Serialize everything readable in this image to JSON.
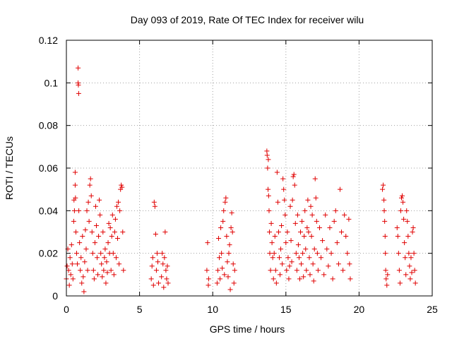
{
  "chart_data": {
    "type": "scatter",
    "title": "Day 093 of 2019, Rate Of TEC Index for receiver wilu",
    "xlabel": "GPS time / hours",
    "ylabel": "ROTI / TECUs",
    "xlim": [
      0,
      25
    ],
    "ylim": [
      0,
      0.12
    ],
    "xticks": [
      0,
      5,
      10,
      15,
      20,
      25
    ],
    "xtick_labels": [
      "0",
      "5",
      "10",
      "15",
      "20",
      "25"
    ],
    "yticks": [
      0,
      0.02,
      0.04,
      0.06,
      0.08,
      0.1,
      0.12
    ],
    "ytick_labels": [
      "0",
      "0.02",
      "0.04",
      "0.06",
      "0.08",
      "0.1",
      "0.12"
    ],
    "grid": true,
    "marker": "+",
    "color": "#e00000",
    "series": [
      {
        "name": "ROTI",
        "points": [
          [
            0.0,
            0.008
          ],
          [
            0.05,
            0.014
          ],
          [
            0.1,
            0.022
          ],
          [
            0.15,
            0.012
          ],
          [
            0.2,
            0.005
          ],
          [
            0.25,
            0.018
          ],
          [
            0.3,
            0.01
          ],
          [
            0.35,
            0.024
          ],
          [
            0.4,
            0.015
          ],
          [
            0.45,
            0.008
          ],
          [
            0.5,
            0.035
          ],
          [
            0.52,
            0.045
          ],
          [
            0.55,
            0.04
          ],
          [
            0.6,
            0.052
          ],
          [
            0.6,
            0.058
          ],
          [
            0.62,
            0.046
          ],
          [
            0.65,
            0.03
          ],
          [
            0.7,
            0.02
          ],
          [
            0.75,
            0.015
          ],
          [
            0.8,
            0.1
          ],
          [
            0.8,
            0.107
          ],
          [
            0.82,
            0.099
          ],
          [
            0.84,
            0.095
          ],
          [
            0.85,
            0.04
          ],
          [
            0.9,
            0.025
          ],
          [
            0.95,
            0.012
          ],
          [
            1.0,
            0.018
          ],
          [
            1.05,
            0.006
          ],
          [
            1.1,
            0.028
          ],
          [
            1.15,
            0.009
          ],
          [
            1.2,
            0.002
          ],
          [
            1.25,
            0.016
          ],
          [
            1.3,
            0.031
          ],
          [
            1.35,
            0.022
          ],
          [
            1.4,
            0.04
          ],
          [
            1.45,
            0.012
          ],
          [
            1.5,
            0.044
          ],
          [
            1.55,
            0.035
          ],
          [
            1.6,
            0.052
          ],
          [
            1.65,
            0.055
          ],
          [
            1.7,
            0.047
          ],
          [
            1.75,
            0.03
          ],
          [
            1.8,
            0.02
          ],
          [
            1.85,
            0.012
          ],
          [
            1.9,
            0.008
          ],
          [
            1.95,
            0.025
          ],
          [
            2.0,
            0.042
          ],
          [
            2.05,
            0.033
          ],
          [
            2.1,
            0.018
          ],
          [
            2.15,
            0.01
          ],
          [
            2.2,
            0.028
          ],
          [
            2.25,
            0.045
          ],
          [
            2.3,
            0.038
          ],
          [
            2.35,
            0.02
          ],
          [
            2.4,
            0.015
          ],
          [
            2.45,
            0.009
          ],
          [
            2.5,
            0.03
          ],
          [
            2.55,
            0.012
          ],
          [
            2.6,
            0.018
          ],
          [
            2.65,
            0.022
          ],
          [
            2.7,
            0.006
          ],
          [
            2.75,
            0.016
          ],
          [
            2.8,
            0.011
          ],
          [
            2.85,
            0.025
          ],
          [
            2.9,
            0.034
          ],
          [
            2.95,
            0.02
          ],
          [
            3.0,
            0.032
          ],
          [
            3.05,
            0.012
          ],
          [
            3.1,
            0.028
          ],
          [
            3.15,
            0.038
          ],
          [
            3.2,
            0.02
          ],
          [
            3.25,
            0.01
          ],
          [
            3.3,
            0.03
          ],
          [
            3.35,
            0.036
          ],
          [
            3.4,
            0.018
          ],
          [
            3.45,
            0.042
          ],
          [
            3.5,
            0.027
          ],
          [
            3.55,
            0.044
          ],
          [
            3.6,
            0.015
          ],
          [
            3.65,
            0.04
          ],
          [
            3.7,
            0.05
          ],
          [
            3.75,
            0.052
          ],
          [
            3.8,
            0.051
          ],
          [
            3.85,
            0.03
          ],
          [
            3.9,
            0.012
          ],
          [
            5.8,
            0.008
          ],
          [
            5.85,
            0.014
          ],
          [
            5.9,
            0.018
          ],
          [
            5.95,
            0.005
          ],
          [
            6.0,
            0.044
          ],
          [
            6.05,
            0.042
          ],
          [
            6.1,
            0.029
          ],
          [
            6.15,
            0.012
          ],
          [
            6.2,
            0.02
          ],
          [
            6.25,
            0.016
          ],
          [
            6.3,
            0.006
          ],
          [
            6.5,
            0.009
          ],
          [
            6.55,
            0.02
          ],
          [
            6.6,
            0.015
          ],
          [
            6.65,
            0.004
          ],
          [
            6.7,
            0.018
          ],
          [
            6.75,
            0.03
          ],
          [
            6.8,
            0.012
          ],
          [
            6.85,
            0.008
          ],
          [
            6.9,
            0.014
          ],
          [
            6.95,
            0.006
          ],
          [
            9.6,
            0.012
          ],
          [
            9.65,
            0.025
          ],
          [
            9.7,
            0.005
          ],
          [
            9.72,
            0.008
          ],
          [
            10.3,
            0.006
          ],
          [
            10.35,
            0.012
          ],
          [
            10.4,
            0.027
          ],
          [
            10.45,
            0.018
          ],
          [
            10.5,
            0.008
          ],
          [
            10.55,
            0.032
          ],
          [
            10.6,
            0.02
          ],
          [
            10.65,
            0.013
          ],
          [
            10.7,
            0.035
          ],
          [
            10.75,
            0.04
          ],
          [
            10.8,
            0.01
          ],
          [
            10.85,
            0.044
          ],
          [
            10.9,
            0.046
          ],
          [
            10.95,
            0.028
          ],
          [
            11.0,
            0.016
          ],
          [
            11.05,
            0.009
          ],
          [
            11.1,
            0.02
          ],
          [
            11.15,
            0.024
          ],
          [
            11.2,
            0.003
          ],
          [
            11.25,
            0.032
          ],
          [
            11.3,
            0.039
          ],
          [
            11.35,
            0.03
          ],
          [
            11.4,
            0.015
          ],
          [
            11.45,
            0.006
          ],
          [
            11.5,
            0.012
          ],
          [
            13.7,
            0.068
          ],
          [
            13.72,
            0.066
          ],
          [
            13.75,
            0.06
          ],
          [
            13.78,
            0.05
          ],
          [
            13.8,
            0.064
          ],
          [
            13.82,
            0.047
          ],
          [
            13.85,
            0.04
          ],
          [
            13.88,
            0.03
          ],
          [
            13.9,
            0.02
          ],
          [
            13.95,
            0.012
          ],
          [
            14.0,
            0.034
          ],
          [
            14.05,
            0.025
          ],
          [
            14.1,
            0.018
          ],
          [
            14.15,
            0.008
          ],
          [
            14.2,
            0.02
          ],
          [
            14.25,
            0.028
          ],
          [
            14.3,
            0.012
          ],
          [
            14.35,
            0.006
          ],
          [
            14.4,
            0.058
          ],
          [
            14.45,
            0.044
          ],
          [
            14.5,
            0.03
          ],
          [
            14.55,
            0.018
          ],
          [
            14.6,
            0.01
          ],
          [
            14.65,
            0.022
          ],
          [
            14.7,
            0.033
          ],
          [
            14.75,
            0.015
          ],
          [
            14.8,
            0.055
          ],
          [
            14.85,
            0.05
          ],
          [
            14.9,
            0.045
          ],
          [
            14.95,
            0.038
          ],
          [
            15.0,
            0.025
          ],
          [
            15.05,
            0.012
          ],
          [
            15.1,
            0.03
          ],
          [
            15.15,
            0.018
          ],
          [
            15.2,
            0.008
          ],
          [
            15.25,
            0.014
          ],
          [
            15.3,
            0.042
          ],
          [
            15.35,
            0.026
          ],
          [
            15.4,
            0.016
          ],
          [
            15.45,
            0.045
          ],
          [
            15.5,
            0.056
          ],
          [
            15.55,
            0.057
          ],
          [
            15.6,
            0.052
          ],
          [
            15.65,
            0.034
          ],
          [
            15.7,
            0.02
          ],
          [
            15.75,
            0.012
          ],
          [
            15.8,
            0.038
          ],
          [
            15.85,
            0.024
          ],
          [
            15.9,
            0.018
          ],
          [
            15.95,
            0.008
          ],
          [
            16.0,
            0.03
          ],
          [
            16.05,
            0.015
          ],
          [
            16.1,
            0.035
          ],
          [
            16.15,
            0.02
          ],
          [
            16.2,
            0.009
          ],
          [
            16.25,
            0.028
          ],
          [
            16.3,
            0.04
          ],
          [
            16.35,
            0.022
          ],
          [
            16.4,
            0.012
          ],
          [
            16.45,
            0.032
          ],
          [
            16.5,
            0.045
          ],
          [
            16.55,
            0.03
          ],
          [
            16.6,
            0.018
          ],
          [
            16.65,
            0.01
          ],
          [
            16.7,
            0.042
          ],
          [
            16.75,
            0.028
          ],
          [
            16.8,
            0.038
          ],
          [
            16.85,
            0.015
          ],
          [
            16.9,
            0.007
          ],
          [
            16.95,
            0.022
          ],
          [
            17.0,
            0.055
          ],
          [
            17.05,
            0.046
          ],
          [
            17.1,
            0.035
          ],
          [
            17.15,
            0.02
          ],
          [
            17.2,
            0.012
          ],
          [
            17.3,
            0.032
          ],
          [
            17.4,
            0.018
          ],
          [
            17.5,
            0.026
          ],
          [
            17.6,
            0.01
          ],
          [
            17.7,
            0.038
          ],
          [
            17.8,
            0.022
          ],
          [
            17.9,
            0.014
          ],
          [
            18.0,
            0.032
          ],
          [
            18.1,
            0.02
          ],
          [
            18.2,
            0.008
          ],
          [
            18.3,
            0.035
          ],
          [
            18.4,
            0.04
          ],
          [
            18.5,
            0.025
          ],
          [
            18.6,
            0.015
          ],
          [
            18.7,
            0.05
          ],
          [
            18.8,
            0.03
          ],
          [
            18.9,
            0.012
          ],
          [
            19.0,
            0.038
          ],
          [
            19.1,
            0.028
          ],
          [
            19.2,
            0.02
          ],
          [
            19.3,
            0.036
          ],
          [
            19.35,
            0.015
          ],
          [
            19.4,
            0.008
          ],
          [
            21.6,
            0.05
          ],
          [
            21.65,
            0.052
          ],
          [
            21.7,
            0.045
          ],
          [
            21.72,
            0.04
          ],
          [
            21.75,
            0.035
          ],
          [
            21.78,
            0.028
          ],
          [
            21.8,
            0.02
          ],
          [
            21.82,
            0.012
          ],
          [
            21.85,
            0.008
          ],
          [
            21.9,
            0.005
          ],
          [
            21.95,
            0.01
          ],
          [
            22.6,
            0.032
          ],
          [
            22.65,
            0.028
          ],
          [
            22.7,
            0.02
          ],
          [
            22.75,
            0.012
          ],
          [
            22.8,
            0.006
          ],
          [
            22.85,
            0.04
          ],
          [
            22.9,
            0.046
          ],
          [
            22.95,
            0.047
          ],
          [
            23.0,
            0.044
          ],
          [
            23.05,
            0.036
          ],
          [
            23.1,
            0.025
          ],
          [
            23.15,
            0.018
          ],
          [
            23.2,
            0.01
          ],
          [
            23.25,
            0.04
          ],
          [
            23.3,
            0.035
          ],
          [
            23.35,
            0.028
          ],
          [
            23.4,
            0.02
          ],
          [
            23.45,
            0.014
          ],
          [
            23.5,
            0.008
          ],
          [
            23.55,
            0.018
          ],
          [
            23.6,
            0.011
          ],
          [
            23.65,
            0.03
          ],
          [
            23.7,
            0.032
          ],
          [
            23.75,
            0.02
          ],
          [
            23.8,
            0.012
          ],
          [
            23.85,
            0.006
          ]
        ]
      }
    ]
  }
}
